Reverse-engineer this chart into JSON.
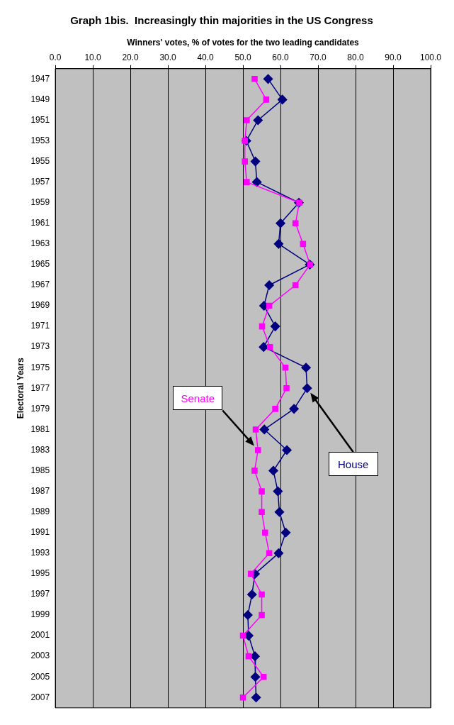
{
  "chart_data": {
    "type": "line",
    "title": "Graph 1bis.  Increasingly thin majorities in the US Congress",
    "xlabel": "Winners' votes, % of votes for the two leading candidates",
    "ylabel": "Electoral Years",
    "orientation": "horizontal",
    "categories": [
      "1947",
      "1949",
      "1951",
      "1953",
      "1955",
      "1957",
      "1959",
      "1961",
      "1963",
      "1965",
      "1967",
      "1969",
      "1971",
      "1973",
      "1975",
      "1977",
      "1979",
      "1981",
      "1983",
      "1985",
      "1987",
      "1989",
      "1991",
      "1993",
      "1995",
      "1997",
      "1999",
      "2001",
      "2003",
      "2005",
      "2007"
    ],
    "xlim": [
      0,
      100
    ],
    "xticks": [
      {
        "value": 0,
        "label": "0.0"
      },
      {
        "value": 10,
        "label": "10.0"
      },
      {
        "value": 20,
        "label": "20.0"
      },
      {
        "value": 30,
        "label": "30.0"
      },
      {
        "value": 40,
        "label": "40.0"
      },
      {
        "value": 50,
        "label": "50.0"
      },
      {
        "value": 60,
        "label": "60.0"
      },
      {
        "value": 70,
        "label": "70.0"
      },
      {
        "value": 80,
        "label": "80.0"
      },
      {
        "value": 90,
        "label": "90.0"
      },
      {
        "value": 100,
        "label": "100.0"
      }
    ],
    "grid": "x",
    "legend": false,
    "series": [
      {
        "name": "House",
        "color": "#000080",
        "marker": "diamond",
        "values": [
          56.7,
          60.5,
          54.0,
          50.9,
          53.3,
          53.7,
          64.9,
          60.0,
          59.5,
          67.8,
          57.0,
          55.6,
          58.6,
          55.5,
          66.8,
          67.1,
          63.6,
          55.7,
          61.7,
          58.1,
          59.3,
          59.7,
          61.4,
          59.5,
          53.2,
          52.4,
          51.3,
          51.5,
          53.2,
          53.3,
          53.5
        ]
      },
      {
        "name": "Senate",
        "color": "#ff00ff",
        "marker": "square",
        "values": [
          53.1,
          56.2,
          51.0,
          50.5,
          50.5,
          51.0,
          65.0,
          64.0,
          66.0,
          67.9,
          64.0,
          57.0,
          55.1,
          57.2,
          61.3,
          61.6,
          58.6,
          53.4,
          54.0,
          53.1,
          55.0,
          55.0,
          55.9,
          57.0,
          52.1,
          55.0,
          55.0,
          50.0,
          51.5,
          55.5,
          50.0
        ]
      }
    ]
  }
}
